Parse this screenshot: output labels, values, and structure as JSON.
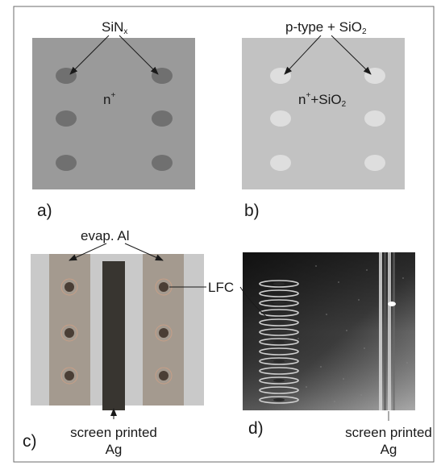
{
  "panels": {
    "a": {
      "letter": "a)",
      "callout": "SiN",
      "callout_sub": "x",
      "center": "n",
      "center_sup": "+"
    },
    "b": {
      "letter": "b)",
      "callout_main": "p-type + SiO",
      "callout_sub": "2",
      "center_main": "n",
      "center_sup": "+",
      "center_rest": "+SiO",
      "center_sub": "2"
    },
    "c": {
      "letter": "c)",
      "top_label": "evap. Al",
      "side_label": "LFC",
      "bottom_line1": "screen printed",
      "bottom_line2": "Ag"
    },
    "d": {
      "letter": "d)",
      "bottom_line1": "screen printed",
      "bottom_line2": "Ag"
    }
  },
  "colors": {
    "frame": "#6b6b6b",
    "panel_a_bg": "#9a9a9a",
    "panel_a_dot": "#707070",
    "panel_b_bg": "#c2c2c2",
    "panel_b_dot": "#dedede",
    "panel_c_outer": "#c9c9c9",
    "panel_c_strip": "#a49a8f",
    "panel_c_finger": "#383530",
    "photo_dark": "#1c1c1c",
    "photo_mid": "#7a7a7a"
  }
}
